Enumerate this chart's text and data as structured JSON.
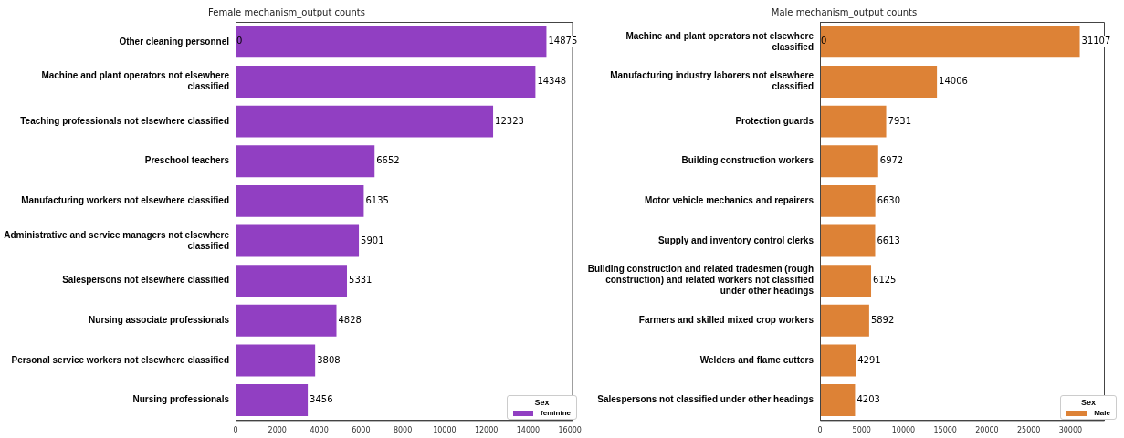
{
  "chart_data": [
    {
      "type": "bar",
      "orientation": "horizontal",
      "title": "Female mechanism_output counts",
      "categories": [
        "Other cleaning personnel",
        "Machine and plant operators not elsewhere classified",
        "Teaching professionals not elsewhere classified",
        "Preschool teachers",
        "Manufacturing workers not elsewhere classified",
        "Administrative and service managers not elsewhere classified",
        "Salespersons not elsewhere classified",
        "Nursing associate professionals",
        "Personal service workers not elsewhere classified",
        "Nursing professionals"
      ],
      "series": [
        {
          "name": "feminine",
          "color": "#913fc2",
          "values": [
            14875,
            14348,
            12323,
            6652,
            6135,
            5901,
            5331,
            4828,
            3808,
            3456
          ]
        }
      ],
      "xlim": [
        0,
        16100
      ],
      "xticks": [
        0,
        2000,
        4000,
        6000,
        8000,
        10000,
        12000,
        14000,
        16000
      ],
      "data_labels": true,
      "grid": false,
      "legend": "bottom right",
      "legend_title": "Sex",
      "annotations": [
        {
          "text": "0",
          "x": 0,
          "y": "Other cleaning personnel"
        }
      ]
    },
    {
      "type": "bar",
      "orientation": "horizontal",
      "title": "Male mechanism_output counts",
      "categories": [
        "Machine and plant operators not elsewhere classified",
        "Manufacturing industry laborers not elsewhere classified",
        "Protection guards",
        "Building construction workers",
        "Motor vehicle mechanics and repairers",
        "Supply and inventory control clerks",
        "Building construction and related tradesmen (rough construction) and related workers not classified under other headings",
        "Farmers and skilled mixed crop workers",
        "Welders and flame cutters",
        "Salespersons not classified under other headings"
      ],
      "series": [
        {
          "name": "Male",
          "color": "#dd8236",
          "values": [
            31107,
            14006,
            7931,
            6972,
            6630,
            6613,
            6125,
            5892,
            4291,
            4203
          ]
        }
      ],
      "xlim": [
        0,
        34000
      ],
      "xticks": [
        0,
        5000,
        10000,
        15000,
        20000,
        25000,
        30000
      ],
      "data_labels": true,
      "grid": false,
      "legend": "bottom right",
      "legend_title": "Sex",
      "annotations": [
        {
          "text": "0",
          "x": 0,
          "y": "Machine and plant operators not elsewhere classified"
        }
      ]
    }
  ]
}
